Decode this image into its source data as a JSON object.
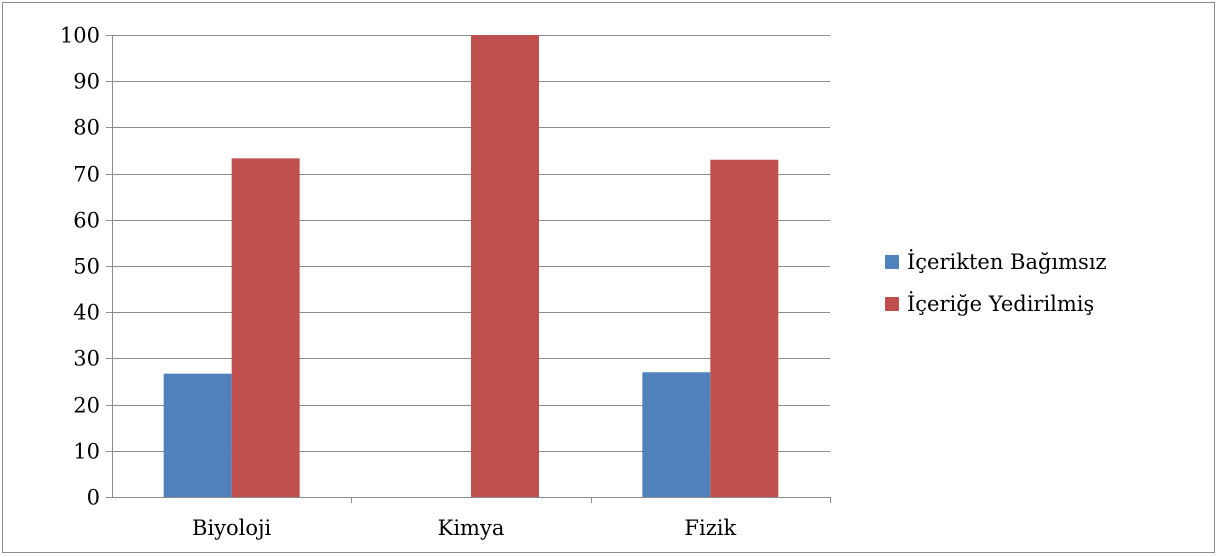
{
  "chart_data": {
    "type": "bar",
    "categories": [
      "Biyoloji",
      "Kimya",
      "Fizik"
    ],
    "series": [
      {
        "name": "İçerikten Bağımsız",
        "color": "#4f81bd",
        "values": [
          26.7,
          0,
          27
        ]
      },
      {
        "name": "İçeriğe Yedirilmiş",
        "color": "#c0504d",
        "values": [
          73.3,
          100,
          73
        ]
      }
    ],
    "title": "",
    "xlabel": "",
    "ylabel": "",
    "ylim": [
      0,
      100
    ],
    "yticks": [
      0,
      10,
      20,
      30,
      40,
      50,
      60,
      70,
      80,
      90,
      100
    ],
    "grid": true,
    "gridline_color": "#8c8c8c",
    "legend_position": "right"
  }
}
